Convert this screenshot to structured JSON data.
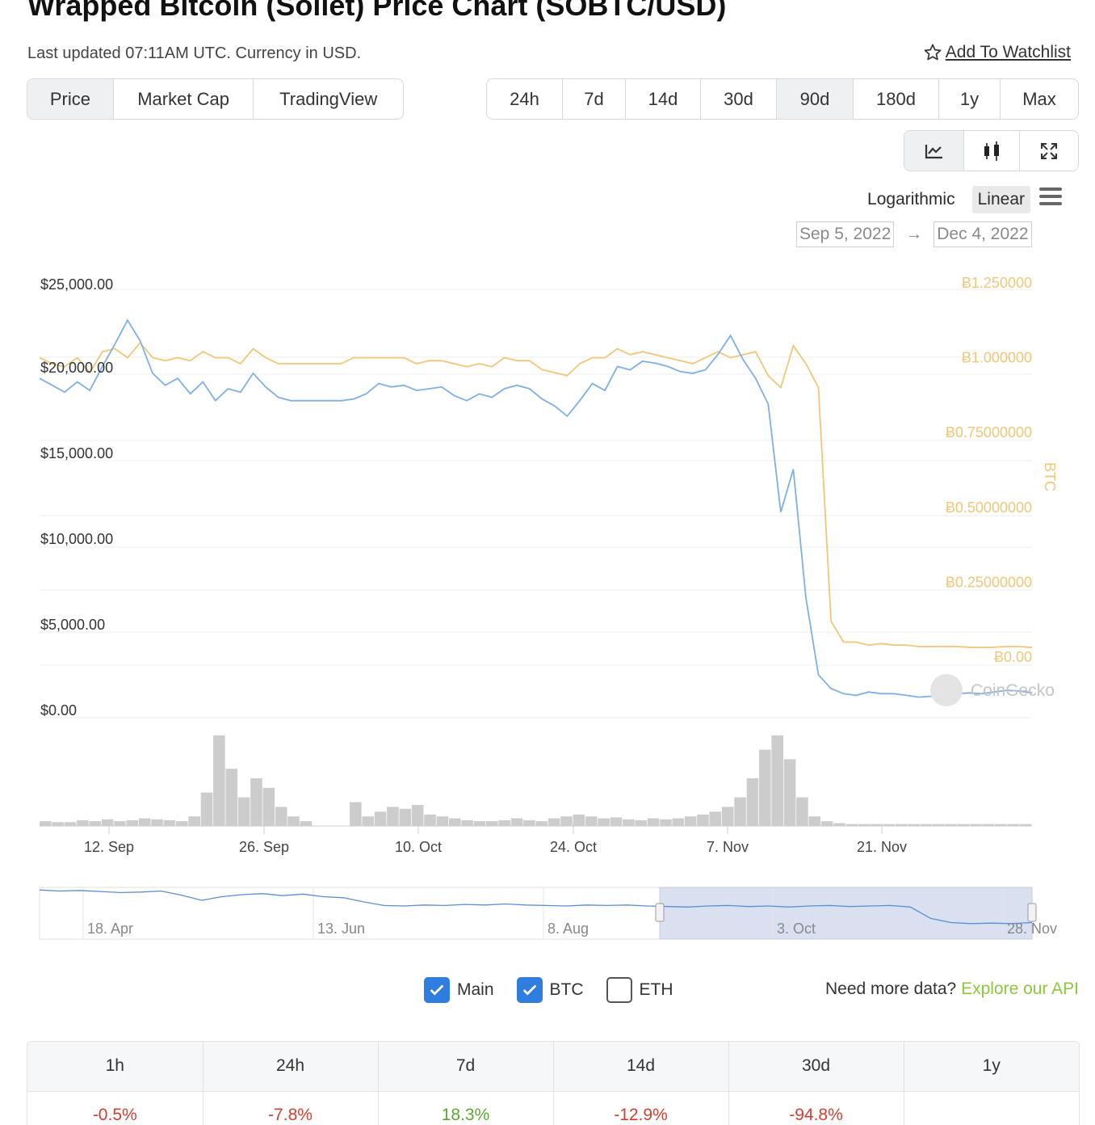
{
  "title": "Wrapped Bitcoin (Sollet) Price Chart (SOBTC/USD)",
  "subtitle": "Last updated 07:11AM UTC. Currency in USD.",
  "watchlist_label": "Add To Watchlist",
  "tabs": [
    {
      "label": "Price",
      "active": true
    },
    {
      "label": "Market Cap",
      "active": false
    },
    {
      "label": "TradingView",
      "active": false
    }
  ],
  "ranges": [
    {
      "label": "24h",
      "active": false
    },
    {
      "label": "7d",
      "active": false
    },
    {
      "label": "14d",
      "active": false
    },
    {
      "label": "30d",
      "active": false
    },
    {
      "label": "90d",
      "active": true
    },
    {
      "label": "180d",
      "active": false
    },
    {
      "label": "1y",
      "active": false
    },
    {
      "label": "Max",
      "active": false
    }
  ],
  "tools": [
    "line-chart-icon",
    "candlestick-icon",
    "fullscreen-icon"
  ],
  "scale": {
    "log_label": "Logarithmic",
    "linear_label": "Linear",
    "selected": "Linear"
  },
  "date_range": {
    "from": "Sep 5, 2022",
    "to": "Dec 4, 2022"
  },
  "chart_data": {
    "type": "line",
    "colors": {
      "main": "#7eb0e6",
      "btc": "#f2c678",
      "volume": "#cccccc"
    },
    "y_left_ticks": [
      "$25,000.00",
      "$20,000.00",
      "$15,000.00",
      "$10,000.00",
      "$5,000.00",
      "$0.00"
    ],
    "y_right_ticks": [
      "Ƀ1.250000",
      "Ƀ1.000000",
      "Ƀ0.75000000",
      "Ƀ0.50000000",
      "Ƀ0.25000000",
      "Ƀ0.00"
    ],
    "y_right_label": "BTC",
    "ylim_usd": [
      0,
      25000
    ],
    "ylim_btc": [
      0,
      1.25
    ],
    "x_ticks": [
      "12. Sep",
      "26. Sep",
      "10. Oct",
      "24. Oct",
      "7. Nov",
      "21. Nov"
    ],
    "series": [
      {
        "name": "Main",
        "unit": "USD",
        "values": [
          19800,
          19400,
          19000,
          19600,
          19100,
          20500,
          21800,
          23200,
          22000,
          20100,
          19400,
          19800,
          18900,
          19600,
          18500,
          19200,
          19000,
          20100,
          19300,
          18700,
          18500,
          18500,
          18500,
          18500,
          18500,
          18600,
          18900,
          19500,
          19300,
          19400,
          19100,
          19200,
          19300,
          18800,
          18500,
          18900,
          18700,
          19200,
          19400,
          19200,
          18600,
          18200,
          17600,
          18500,
          19500,
          19100,
          20500,
          20300,
          20800,
          20700,
          20500,
          20200,
          20100,
          20300,
          21200,
          22300,
          20900,
          19800,
          18300,
          12000,
          14500,
          7000,
          2500,
          1700,
          1400,
          1300,
          1500,
          1400,
          1400,
          1300,
          1200,
          1250,
          1300,
          1400,
          1450,
          1400,
          1500,
          1600,
          1550,
          1450
        ]
      },
      {
        "name": "BTC",
        "unit": "BTC",
        "values": [
          1.0,
          0.98,
          0.97,
          1.0,
          0.95,
          1.02,
          1.03,
          1.0,
          1.05,
          1.0,
          0.99,
          1.0,
          0.99,
          1.02,
          1.0,
          1.0,
          0.98,
          1.03,
          1.0,
          0.98,
          0.98,
          0.98,
          0.98,
          0.98,
          0.98,
          1.0,
          1.0,
          1.0,
          1.0,
          1.0,
          0.98,
          0.99,
          0.99,
          0.98,
          0.97,
          0.98,
          0.97,
          1.0,
          0.99,
          0.99,
          0.96,
          0.95,
          0.94,
          0.98,
          1.0,
          1.0,
          1.03,
          1.01,
          1.02,
          1.01,
          1.0,
          0.99,
          0.98,
          1.0,
          1.02,
          1.0,
          1.01,
          1.02,
          0.94,
          0.9,
          1.04,
          0.98,
          0.9,
          0.12,
          0.05,
          0.05,
          0.04,
          0.045,
          0.04,
          0.04,
          0.035,
          0.035,
          0.035,
          0.035,
          0.033,
          0.032,
          0.033,
          0.035,
          0.035,
          0.032
        ]
      }
    ],
    "volume_relative": [
      0.05,
      0.04,
      0.04,
      0.06,
      0.05,
      0.07,
      0.05,
      0.06,
      0.08,
      0.07,
      0.06,
      0.05,
      0.1,
      0.35,
      0.95,
      0.6,
      0.3,
      0.5,
      0.4,
      0.2,
      0.1,
      0.05,
      0.0,
      0.0,
      0.0,
      0.25,
      0.1,
      0.15,
      0.2,
      0.18,
      0.22,
      0.12,
      0.1,
      0.08,
      0.06,
      0.05,
      0.05,
      0.06,
      0.08,
      0.06,
      0.05,
      0.08,
      0.1,
      0.12,
      0.1,
      0.08,
      0.09,
      0.07,
      0.06,
      0.08,
      0.07,
      0.08,
      0.1,
      0.12,
      0.15,
      0.2,
      0.3,
      0.5,
      0.8,
      0.95,
      0.7,
      0.3,
      0.1,
      0.05,
      0.03,
      0.02,
      0.02,
      0.02,
      0.02,
      0.02,
      0.02,
      0.02,
      0.02,
      0.02,
      0.02,
      0.02,
      0.02,
      0.02,
      0.02,
      0.02
    ],
    "navigator_ticks": [
      "18. Apr",
      "13. Jun",
      "8. Aug",
      "3. Oct",
      "28. Nov"
    ],
    "navigator_values": [
      0.95,
      0.93,
      0.94,
      0.92,
      0.9,
      0.91,
      0.93,
      0.85,
      0.75,
      0.82,
      0.86,
      0.88,
      0.84,
      0.87,
      0.82,
      0.8,
      0.72,
      0.65,
      0.64,
      0.66,
      0.65,
      0.67,
      0.66,
      0.68,
      0.66,
      0.65,
      0.64,
      0.66,
      0.65,
      0.66,
      0.64,
      0.63,
      0.62,
      0.64,
      0.65,
      0.63,
      0.64,
      0.62,
      0.64,
      0.65,
      0.63,
      0.64,
      0.65,
      0.62,
      0.4,
      0.32,
      0.3,
      0.31,
      0.3,
      0.32
    ],
    "watermark": "CoinGecko"
  },
  "toggles": [
    {
      "label": "Main",
      "checked": true
    },
    {
      "label": "BTC",
      "checked": true
    },
    {
      "label": "ETH",
      "checked": false
    }
  ],
  "api": {
    "text": "Need more data? ",
    "link": "Explore our API"
  },
  "performance": {
    "headers": [
      "1h",
      "24h",
      "7d",
      "14d",
      "30d",
      "1y"
    ],
    "values": [
      {
        "text": "-0.5%",
        "sign": "neg"
      },
      {
        "text": "-7.8%",
        "sign": "neg"
      },
      {
        "text": "18.3%",
        "sign": "pos"
      },
      {
        "text": "-12.9%",
        "sign": "neg"
      },
      {
        "text": "-94.8%",
        "sign": "neg"
      },
      {
        "text": "",
        "sign": ""
      }
    ]
  }
}
